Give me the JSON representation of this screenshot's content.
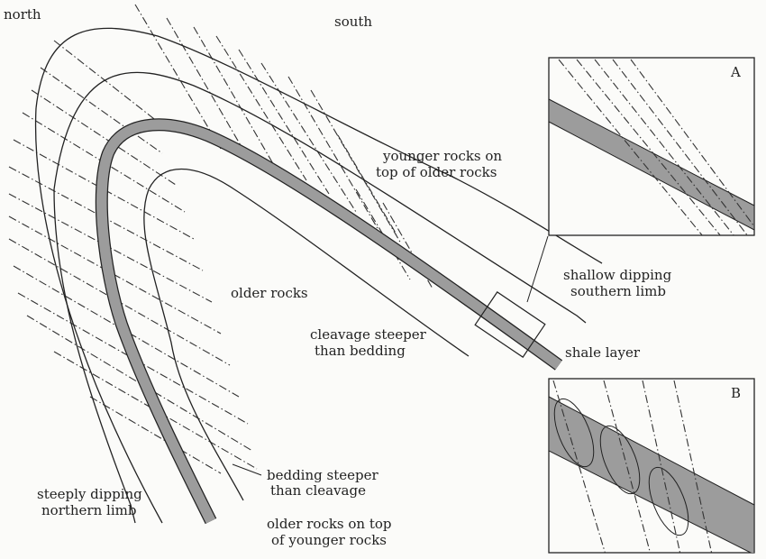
{
  "labels": {
    "north": "north",
    "south": "south",
    "younger_line1": "younger rocks on",
    "younger_line2": "top of older rocks",
    "older_rocks": "older rocks",
    "cleavage_line1": "cleavage steeper",
    "cleavage_line2": "than bedding",
    "shallow_line1": "shallow dipping",
    "shallow_line2": "southern limb",
    "shale_layer": "shale layer",
    "bedding_line1": "bedding steeper",
    "bedding_line2": "than cleavage",
    "steep_line1": "steeply dipping",
    "steep_line2": "northern limb",
    "olderTop_line1": "older rocks on top",
    "olderTop_line2": "of younger rocks"
  },
  "insets": {
    "a_label": "A",
    "b_label": "B"
  },
  "colors": {
    "line": "#222222",
    "shale": "#9c9c9c",
    "background": "#fbfbf9"
  }
}
